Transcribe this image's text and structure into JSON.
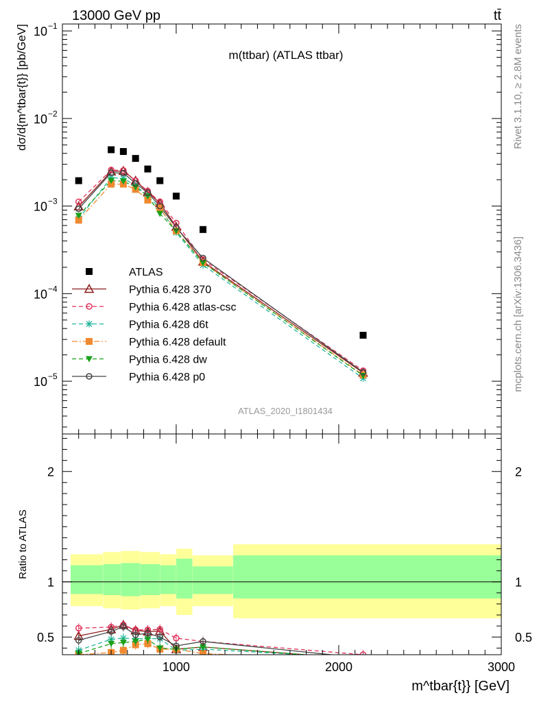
{
  "header": {
    "left": "13000 GeV pp",
    "right": "tt̄",
    "plot_title": "m(ttbar) (ATLAS ttbar)",
    "analysis_id": "ATLAS_2020_I1801434",
    "side_top": "Rivet 3.1.10, ≥ 2.8M events",
    "side_bottom": "mcplots.cern.ch [arXiv:1306.3436]"
  },
  "chart_data": [
    {
      "type": "scatter",
      "panel": "main",
      "ylabel": "dσ/d{m^tbar{t}} [pb/GeV]",
      "yscale": "log",
      "ylim": [
        2.5e-06,
        0.12
      ],
      "xlim": [
        300,
        3000
      ],
      "y_ticks": [
        {
          "v": 0.1,
          "mant": "10",
          "exp": "−1"
        },
        {
          "v": 0.01,
          "mant": "10",
          "exp": "−2"
        },
        {
          "v": 0.001,
          "mant": "10",
          "exp": "−3"
        },
        {
          "v": 0.0001,
          "mant": "10",
          "exp": "−4"
        },
        {
          "v": 1e-05,
          "mant": "10",
          "exp": "−5"
        }
      ],
      "legend_position": "middle-left",
      "x": [
        400,
        600,
        675,
        750,
        825,
        900,
        1000,
        1165,
        2150
      ],
      "series": [
        {
          "name": "ATLAS",
          "key": "atlas",
          "color": "#000000",
          "marker": "square-filled",
          "line": "none",
          "values": [
            0.00195,
            0.0044,
            0.0042,
            0.0035,
            0.00265,
            0.00195,
            0.0013,
            0.00054,
            3.35e-05
          ]
        },
        {
          "name": "Pythia 6.428 370",
          "key": "p370",
          "color": "#8b1a1a",
          "marker": "triangle-open",
          "line": "solid",
          "values": [
            0.00099,
            0.00248,
            0.00252,
            0.00195,
            0.00145,
            0.00108,
            0.00058,
            0.000232,
            1.25e-05
          ]
        },
        {
          "name": "Pythia 6.428 atlas-csc",
          "key": "atlascsc",
          "color": "#e0305a",
          "marker": "circle-open",
          "line": "dashed",
          "values": [
            0.00112,
            0.00258,
            0.00255,
            0.00195,
            0.00148,
            0.00112,
            0.00064,
            0.000245,
            1.32e-05
          ]
        },
        {
          "name": "Pythia 6.428 d6t",
          "key": "d6t",
          "color": "#22b59a",
          "marker": "star",
          "line": "dashed",
          "values": [
            0.00072,
            0.00211,
            0.00207,
            0.00172,
            0.0013,
            0.00095,
            0.0005,
            0.000212,
            1.08e-05
          ]
        },
        {
          "name": "Pythia 6.428 default",
          "key": "default",
          "color": "#f08a30",
          "marker": "square-filled",
          "line": "dashdot",
          "values": [
            0.00069,
            0.00178,
            0.00178,
            0.00155,
            0.00117,
            0.00095,
            0.00052,
            0.000226,
            1.18e-05
          ]
        },
        {
          "name": "Pythia 6.428 dw",
          "key": "dw",
          "color": "#1aa01a",
          "marker": "triangle-down-filled",
          "line": "dashed",
          "values": [
            0.00078,
            0.00195,
            0.00192,
            0.00165,
            0.0013,
            0.00082,
            0.00052,
            0.000225,
            1.16e-05
          ]
        },
        {
          "name": "Pythia 6.428 p0",
          "key": "p0",
          "color": "#444444",
          "marker": "circle-open",
          "line": "solid",
          "values": [
            0.00093,
            0.0024,
            0.00238,
            0.00182,
            0.00142,
            0.001,
            0.00057,
            0.000255,
            1.27e-05
          ]
        }
      ]
    },
    {
      "type": "line",
      "panel": "ratio",
      "ylabel": "Ratio to ATLAS",
      "xlabel": "m^tbar{t}} [GeV]",
      "xlim": [
        300,
        3000
      ],
      "ylim": [
        0.34,
        2.34
      ],
      "x_ticks": [
        1000,
        2000,
        3000
      ],
      "y_ticks": [
        0.5,
        1,
        2
      ],
      "reference_line": 1,
      "bands": [
        {
          "x0": 300,
          "x1": 500,
          "yellow": [
            0.78,
            1.25
          ],
          "green": [
            0.89,
            1.15
          ]
        },
        {
          "x0": 500,
          "x1": 610,
          "yellow": [
            0.76,
            1.27
          ],
          "green": [
            0.88,
            1.16
          ]
        },
        {
          "x0": 610,
          "x1": 730,
          "yellow": [
            0.75,
            1.28
          ],
          "green": [
            0.87,
            1.17
          ]
        },
        {
          "x0": 730,
          "x1": 850,
          "yellow": [
            0.76,
            1.27
          ],
          "green": [
            0.88,
            1.16
          ]
        },
        {
          "x0": 850,
          "x1": 950,
          "yellow": [
            0.78,
            1.25
          ],
          "green": [
            0.89,
            1.15
          ]
        },
        {
          "x0": 950,
          "x1": 1050,
          "yellow": [
            0.7,
            1.3
          ],
          "green": [
            0.85,
            1.21
          ]
        },
        {
          "x0": 1050,
          "x1": 1300,
          "yellow": [
            0.78,
            1.24
          ],
          "green": [
            0.89,
            1.14
          ]
        },
        {
          "x0": 1300,
          "x1": 3000,
          "yellow": [
            0.67,
            1.34
          ],
          "green": [
            0.85,
            1.24
          ]
        }
      ],
      "x": [
        400,
        600,
        675,
        750,
        825,
        900,
        1000,
        1165,
        2150
      ],
      "series": [
        {
          "name": "Pythia 6.428 370",
          "key": "p370",
          "values": [
            0.51,
            0.57,
            0.61,
            0.56,
            0.55,
            0.555,
            0.39,
            0.41,
            0.3
          ]
        },
        {
          "name": "Pythia 6.428 atlas-csc",
          "key": "atlascsc",
          "values": [
            0.58,
            0.59,
            0.61,
            0.565,
            0.565,
            0.57,
            0.49,
            0.46,
            0.34
          ]
        },
        {
          "name": "Pythia 6.428 d6t",
          "key": "d6t",
          "values": [
            0.38,
            0.48,
            0.49,
            0.485,
            0.485,
            0.485,
            0.38,
            0.39,
            0.31
          ]
        },
        {
          "name": "Pythia 6.428 default",
          "key": "default",
          "values": [
            0.34,
            0.36,
            0.38,
            0.43,
            0.44,
            0.39,
            0.39,
            0.35,
            0.29
          ]
        },
        {
          "name": "Pythia 6.428 dw",
          "key": "dw",
          "values": [
            0.35,
            0.44,
            0.45,
            0.46,
            0.48,
            0.4,
            0.39,
            0.41,
            0.3
          ]
        },
        {
          "name": "Pythia 6.428 p0",
          "key": "p0",
          "values": [
            0.47,
            0.55,
            0.595,
            0.52,
            0.535,
            0.5,
            0.42,
            0.46,
            0.31
          ]
        }
      ]
    }
  ]
}
